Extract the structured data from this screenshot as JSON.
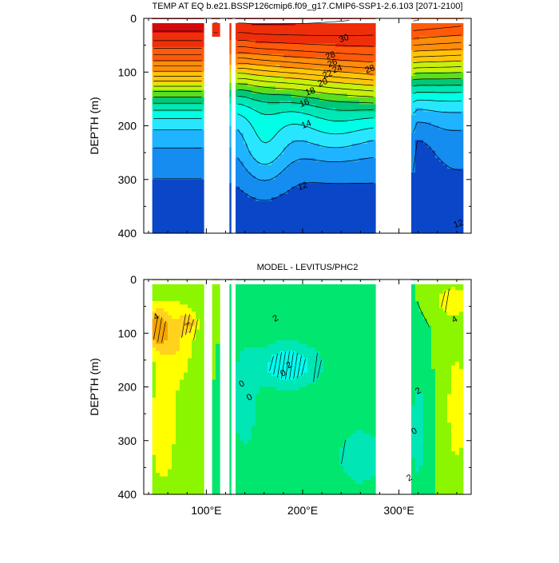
{
  "chart_data": [
    {
      "type": "heatmap",
      "title": "TEMP AT EQ b.e21.BSSP126cmip6.f09_g17.CMIP6-SSP1-2.6.103 [2071-2100]",
      "ylabel": "DEPTH (m)",
      "xlabel": "",
      "ylim": [
        400,
        0
      ],
      "xlim": [
        35,
        375
      ],
      "y_ticks": [
        "0",
        "100",
        "200",
        "300",
        "400"
      ],
      "x_ticks": [],
      "contour_labels": [
        "30",
        "28",
        "26",
        "24",
        "22",
        "20",
        "18",
        "16",
        "14",
        "12",
        "28",
        "12"
      ],
      "levels": [
        {
          "value": 30,
          "color": "#b30000"
        },
        {
          "value": 28,
          "color": "#d40a0a"
        },
        {
          "value": 26,
          "color": "#ee2f0a"
        },
        {
          "value": 24,
          "color": "#ff5a0a"
        },
        {
          "value": 22,
          "color": "#ff8c0a"
        },
        {
          "value": 20,
          "color": "#ffc40a"
        },
        {
          "value": 18,
          "color": "#c8f00a"
        },
        {
          "value": 17,
          "color": "#5ade1e"
        },
        {
          "value": 16,
          "color": "#00c878"
        },
        {
          "value": 15,
          "color": "#00e6b4"
        },
        {
          "value": 14,
          "color": "#00ffe6"
        },
        {
          "value": 13,
          "color": "#28e6ff"
        },
        {
          "value": 12,
          "color": "#1eb4ff"
        },
        {
          "value": 11,
          "color": "#148cf0"
        },
        {
          "value": 10,
          "color": "#0a46c8"
        }
      ]
    },
    {
      "type": "heatmap",
      "title": "MODEL - LEVITUS/PHC2",
      "ylabel": "DEPTH (m)",
      "xlabel": "",
      "ylim": [
        400,
        0
      ],
      "xlim": [
        35,
        375
      ],
      "y_ticks": [
        "0",
        "100",
        "200",
        "300",
        "400"
      ],
      "x_ticks": [
        "100°E",
        "200°E",
        "300°E"
      ],
      "contour_labels": [
        "4",
        "2",
        "0",
        "2",
        "0",
        "0",
        "2",
        "0",
        "2",
        "4"
      ],
      "levels": [
        {
          "value": 4,
          "color": "#f5a500"
        },
        {
          "value": 3,
          "color": "#ffd21e"
        },
        {
          "value": 2,
          "color": "#ffff00"
        },
        {
          "value": 1,
          "color": "#8cf500"
        },
        {
          "value": 0,
          "color": "#00e66e"
        },
        {
          "value": -1,
          "color": "#00e6b4"
        },
        {
          "value": -2,
          "color": "#00fff0"
        }
      ]
    }
  ]
}
